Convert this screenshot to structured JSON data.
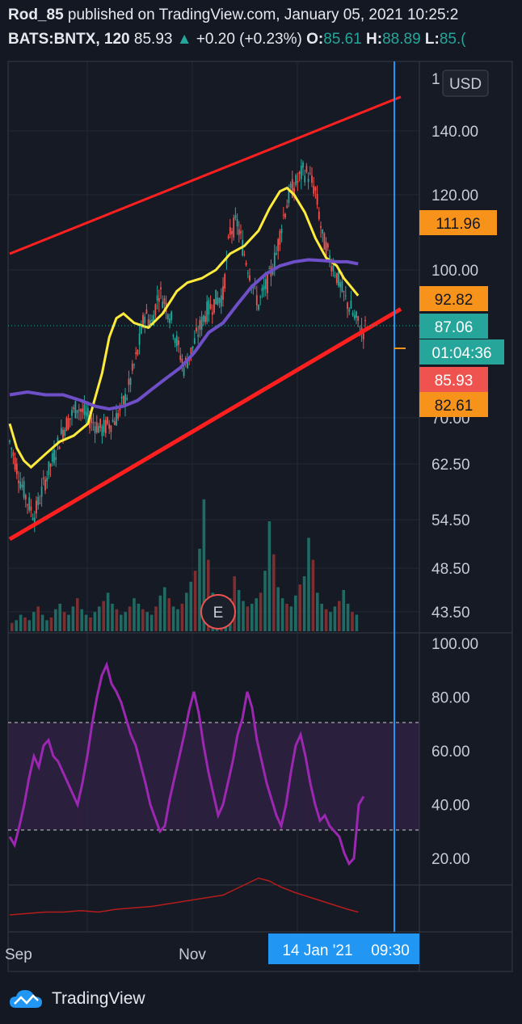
{
  "header": {
    "author": "Rod_85",
    "published_text": "published on TradingView.com, January 05, 2021 10:25:2",
    "symbol": "BATS:BNTX, 120",
    "last": "85.93",
    "change_arrow": "▲",
    "change": "+0.20 (+0.23%)",
    "o_label": "O:",
    "o_value": "85.61",
    "h_label": "H:",
    "h_value": "88.89",
    "l_label": "L:",
    "l_value": "85.("
  },
  "currency_button": "USD",
  "price_axis": {
    "top_partial": "1",
    "ticks": [
      "140.00",
      "120.00",
      "100.00",
      "70.00",
      "62.50",
      "54.50",
      "48.50",
      "43.50"
    ]
  },
  "badges": [
    {
      "label": "111.96",
      "color": "#f7931a",
      "text_color": "#131722"
    },
    {
      "label": "92.82",
      "color": "#f7931a",
      "text_color": "#131722"
    },
    {
      "label": "87.06",
      "color": "#26a69a",
      "text_color": "#ffffff"
    },
    {
      "label": "01:04:36",
      "color": "#26a69a",
      "text_color": "#ffffff"
    },
    {
      "label": "85.93",
      "color": "#ef5350",
      "text_color": "#ffffff"
    },
    {
      "label": "82.61",
      "color": "#f7931a",
      "text_color": "#131722"
    }
  ],
  "earnings_marker": "E",
  "rsi_axis": {
    "ticks": [
      "100.00",
      "80.00",
      "60.00",
      "40.00",
      "20.00"
    ]
  },
  "time_axis": {
    "labels": [
      "Sep",
      "Nov"
    ],
    "crosshair_date": "14 Jan '21",
    "crosshair_time": "09:30"
  },
  "footer": {
    "brand": "TradingView"
  },
  "colors": {
    "up": "#26a69a",
    "down": "#ef5350",
    "channel": "#ff1f1f",
    "ma_fast": "#ffeb3b",
    "ma_slow": "#7e57c2",
    "rsi": "#9c27b0",
    "crosshair": "#2196f3",
    "orange": "#f7931a"
  },
  "chart_data": {
    "type": "candlestick",
    "symbol": "BATS:BNTX",
    "interval": "120",
    "x_labels": [
      "Sep",
      "Nov"
    ],
    "y_ticks": [
      140,
      120,
      100,
      70,
      62.5,
      54.5,
      48.5,
      43.5
    ],
    "y_scale": "log",
    "price_path": [
      [
        0,
        66
      ],
      [
        6,
        60
      ],
      [
        10,
        57
      ],
      [
        14,
        55
      ],
      [
        20,
        60
      ],
      [
        24,
        63
      ],
      [
        30,
        68
      ],
      [
        38,
        72
      ],
      [
        44,
        70
      ],
      [
        52,
        68
      ],
      [
        60,
        70
      ],
      [
        66,
        74
      ],
      [
        72,
        82
      ],
      [
        76,
        90
      ],
      [
        80,
        88
      ],
      [
        84,
        95
      ],
      [
        88,
        92
      ],
      [
        90,
        90
      ],
      [
        94,
        84
      ],
      [
        98,
        79
      ],
      [
        102,
        82
      ],
      [
        106,
        86
      ],
      [
        110,
        90
      ],
      [
        116,
        93
      ],
      [
        120,
        94
      ],
      [
        124,
        110
      ],
      [
        128,
        112
      ],
      [
        132,
        104
      ],
      [
        136,
        98
      ],
      [
        140,
        92
      ],
      [
        142,
        94
      ],
      [
        146,
        98
      ],
      [
        150,
        104
      ],
      [
        154,
        114
      ],
      [
        158,
        121
      ],
      [
        162,
        124
      ],
      [
        165,
        127
      ],
      [
        168,
        126
      ],
      [
        172,
        121
      ],
      [
        176,
        108
      ],
      [
        180,
        103
      ],
      [
        183,
        100
      ],
      [
        186,
        96
      ],
      [
        189,
        93
      ],
      [
        192,
        91
      ],
      [
        194,
        89
      ],
      [
        196,
        88
      ],
      [
        198,
        86
      ],
      [
        200,
        87
      ]
    ],
    "ma_fast_path": [
      [
        0,
        69
      ],
      [
        4,
        65
      ],
      [
        8,
        63
      ],
      [
        12,
        62
      ],
      [
        20,
        64
      ],
      [
        28,
        66
      ],
      [
        36,
        67
      ],
      [
        44,
        69
      ],
      [
        52,
        78
      ],
      [
        56,
        85
      ],
      [
        60,
        89
      ],
      [
        64,
        90
      ],
      [
        70,
        88
      ],
      [
        78,
        87
      ],
      [
        86,
        90
      ],
      [
        94,
        95
      ],
      [
        100,
        97
      ],
      [
        108,
        98
      ],
      [
        116,
        100
      ],
      [
        124,
        104
      ],
      [
        132,
        106
      ],
      [
        140,
        110
      ],
      [
        146,
        116
      ],
      [
        152,
        121
      ],
      [
        156,
        122
      ],
      [
        160,
        120
      ],
      [
        166,
        115
      ],
      [
        172,
        108
      ],
      [
        178,
        103
      ],
      [
        184,
        101
      ],
      [
        188,
        98
      ],
      [
        192,
        96
      ],
      [
        196,
        94
      ]
    ],
    "ma_slow_path": [
      [
        0,
        74
      ],
      [
        10,
        74.5
      ],
      [
        20,
        74
      ],
      [
        30,
        74
      ],
      [
        40,
        73
      ],
      [
        48,
        72
      ],
      [
        56,
        71.5
      ],
      [
        64,
        72
      ],
      [
        72,
        73
      ],
      [
        80,
        75
      ],
      [
        88,
        77
      ],
      [
        96,
        79
      ],
      [
        104,
        82
      ],
      [
        112,
        86
      ],
      [
        120,
        88
      ],
      [
        128,
        92
      ],
      [
        136,
        96
      ],
      [
        144,
        99
      ],
      [
        152,
        101
      ],
      [
        160,
        102
      ],
      [
        168,
        102.5
      ],
      [
        176,
        102.3
      ],
      [
        184,
        102
      ],
      [
        190,
        102
      ],
      [
        196,
        101.5
      ]
    ],
    "channel_upper": [
      [
        0,
        104
      ],
      [
        220,
        152
      ]
    ],
    "channel_lower": [
      [
        0,
        52
      ],
      [
        220,
        91
      ]
    ],
    "rsi_range": [
      0,
      100
    ],
    "rsi_bands": [
      30,
      70
    ],
    "rsi_path": [
      [
        0,
        28
      ],
      [
        2,
        25
      ],
      [
        4,
        32
      ],
      [
        6,
        40
      ],
      [
        8,
        50
      ],
      [
        10,
        58
      ],
      [
        12,
        54
      ],
      [
        14,
        62
      ],
      [
        16,
        64
      ],
      [
        18,
        58
      ],
      [
        20,
        56
      ],
      [
        22,
        52
      ],
      [
        24,
        48
      ],
      [
        26,
        44
      ],
      [
        28,
        40
      ],
      [
        30,
        48
      ],
      [
        32,
        58
      ],
      [
        34,
        70
      ],
      [
        36,
        80
      ],
      [
        38,
        88
      ],
      [
        40,
        92
      ],
      [
        42,
        85
      ],
      [
        44,
        82
      ],
      [
        46,
        78
      ],
      [
        48,
        72
      ],
      [
        50,
        66
      ],
      [
        52,
        62
      ],
      [
        54,
        55
      ],
      [
        56,
        48
      ],
      [
        58,
        40
      ],
      [
        60,
        35
      ],
      [
        62,
        30
      ],
      [
        64,
        32
      ],
      [
        66,
        42
      ],
      [
        68,
        50
      ],
      [
        70,
        58
      ],
      [
        72,
        66
      ],
      [
        74,
        75
      ],
      [
        76,
        82
      ],
      [
        78,
        74
      ],
      [
        80,
        62
      ],
      [
        82,
        52
      ],
      [
        84,
        44
      ],
      [
        86,
        36
      ],
      [
        88,
        40
      ],
      [
        90,
        48
      ],
      [
        92,
        56
      ],
      [
        94,
        66
      ],
      [
        96,
        72
      ],
      [
        98,
        82
      ],
      [
        100,
        76
      ],
      [
        102,
        64
      ],
      [
        104,
        56
      ],
      [
        106,
        48
      ],
      [
        108,
        42
      ],
      [
        110,
        36
      ],
      [
        112,
        32
      ],
      [
        114,
        40
      ],
      [
        116,
        52
      ],
      [
        118,
        62
      ],
      [
        120,
        66
      ],
      [
        122,
        58
      ],
      [
        124,
        48
      ],
      [
        126,
        40
      ],
      [
        128,
        34
      ],
      [
        130,
        36
      ],
      [
        132,
        32
      ],
      [
        134,
        30
      ],
      [
        136,
        28
      ],
      [
        138,
        22
      ],
      [
        140,
        18
      ],
      [
        142,
        20
      ],
      [
        144,
        40
      ],
      [
        146,
        43
      ]
    ],
    "volume_profile": [
      3,
      4,
      6,
      5,
      4,
      7,
      9,
      6,
      4,
      5,
      8,
      10,
      7,
      6,
      9,
      12,
      8,
      6,
      5,
      7,
      9,
      11,
      14,
      10,
      8,
      6,
      7,
      9,
      12,
      10,
      8,
      7,
      6,
      9,
      13,
      16,
      12,
      9,
      8,
      10,
      14,
      18,
      22,
      30,
      48,
      26,
      14,
      10,
      8,
      9,
      12,
      20,
      15,
      11,
      9,
      10,
      12,
      14,
      22,
      40,
      28,
      16,
      12,
      10,
      9,
      13,
      17,
      20,
      34,
      26,
      14,
      10,
      8,
      7,
      9,
      11,
      15,
      10,
      7,
      6
    ],
    "secondary_path": [
      [
        0,
        4
      ],
      [
        10,
        4.5
      ],
      [
        20,
        5
      ],
      [
        30,
        5
      ],
      [
        40,
        5.5
      ],
      [
        50,
        5
      ],
      [
        60,
        6
      ],
      [
        70,
        6.5
      ],
      [
        80,
        7
      ],
      [
        90,
        8
      ],
      [
        100,
        9
      ],
      [
        110,
        10
      ],
      [
        120,
        11
      ],
      [
        130,
        14
      ],
      [
        140,
        17
      ],
      [
        146,
        16
      ],
      [
        152,
        14
      ],
      [
        160,
        12
      ],
      [
        170,
        10
      ],
      [
        180,
        8
      ],
      [
        190,
        6
      ],
      [
        196,
        5
      ]
    ],
    "last_price": 85.93,
    "ohlc": {
      "open": 85.61,
      "high": 88.89
    },
    "change": 0.2,
    "change_percent": 0.23
  }
}
